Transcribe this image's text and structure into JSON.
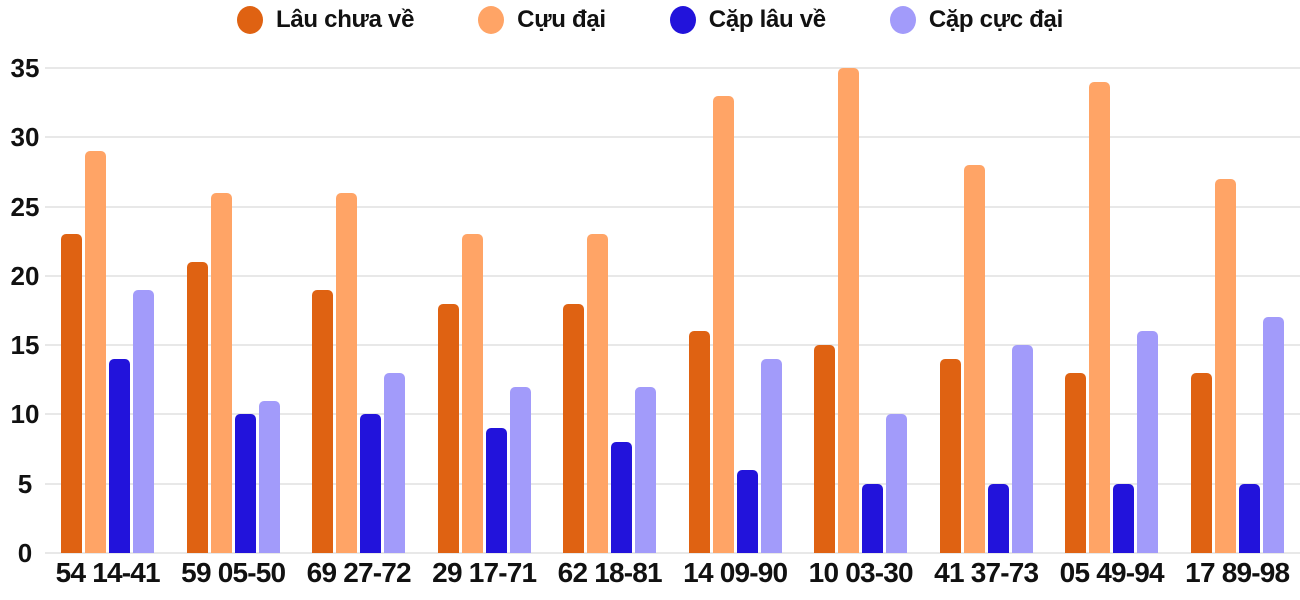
{
  "chart_data": {
    "type": "bar",
    "title": "",
    "xlabel": "",
    "ylabel": "",
    "categories": [
      "54 14-41",
      "59 05-50",
      "69 27-72",
      "29 17-71",
      "62 18-81",
      "14 09-90",
      "10 03-30",
      "41 37-73",
      "05 49-94",
      "17 89-98"
    ],
    "series": [
      {
        "name": "Lâu chưa về",
        "color": "#df6212",
        "values": [
          23,
          21,
          19,
          18,
          18,
          16,
          15,
          14,
          13,
          13
        ]
      },
      {
        "name": "Cựu đại",
        "color": "#ffa466",
        "values": [
          29,
          26,
          26,
          23,
          23,
          33,
          35,
          28,
          34,
          27
        ]
      },
      {
        "name": "Cặp lâu về",
        "color": "#2213db",
        "values": [
          14,
          10,
          10,
          9,
          8,
          6,
          5,
          5,
          5,
          5
        ]
      },
      {
        "name": "Cặp cực đại",
        "color": "#a29bfa",
        "values": [
          19,
          11,
          13,
          12,
          12,
          14,
          10,
          15,
          16,
          17
        ]
      }
    ],
    "ylim": [
      0,
      35
    ],
    "yticks": [
      0,
      5,
      10,
      15,
      20,
      25,
      30,
      35
    ],
    "grid": "horizontal",
    "legend_position": "top"
  },
  "colors": {
    "background": "#ffffff",
    "gridline": "#e8e8e8",
    "text": "#111111"
  }
}
